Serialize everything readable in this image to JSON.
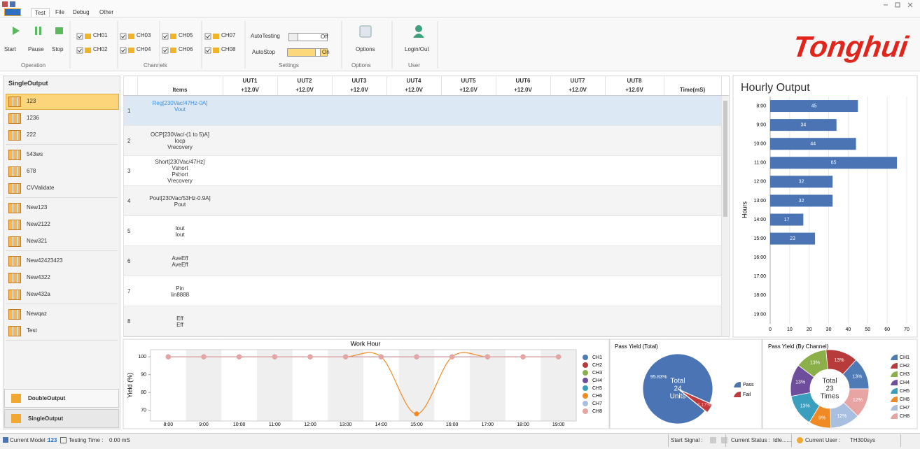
{
  "tabs": [
    "Test",
    "File",
    "Debug",
    "Other"
  ],
  "ribbon": {
    "operation": {
      "buttons": [
        "Start",
        "Pause",
        "Stop"
      ],
      "label": "Operation"
    },
    "channels": {
      "items": [
        "CH01",
        "CH02",
        "CH03",
        "CH04",
        "CH05",
        "CH06",
        "CH07",
        "CH08"
      ],
      "label": "Channels"
    },
    "settings": {
      "auto_testing": "AutoTesting",
      "auto_testing_state": "Off",
      "auto_stop": "AutoStop",
      "auto_stop_state": "On",
      "label": "Settings"
    },
    "options": {
      "button": "Options",
      "label": "Options"
    },
    "user": {
      "button": "Login/Out",
      "label": "User"
    },
    "logo": "Tonghui"
  },
  "sidebar": {
    "title": "SingleOutput",
    "groups": [
      [
        "123",
        "1236",
        "222"
      ],
      [
        "543ws",
        "678",
        "CVValidate"
      ],
      [
        "New123",
        "New2122",
        "New321"
      ],
      [
        "New42423423",
        "New4322",
        "New432a"
      ],
      [
        "Newqaz",
        "Test"
      ]
    ],
    "bottom": [
      "DoubleOutput",
      "SingleOutput"
    ]
  },
  "table": {
    "items_header": "Items",
    "time_header": "Time(mS)",
    "columns": [
      {
        "name": "UUT1",
        "voltage": "+12.0V"
      },
      {
        "name": "UUT2",
        "voltage": "+12.0V"
      },
      {
        "name": "UUT3",
        "voltage": "+12.0V"
      },
      {
        "name": "UUT4",
        "voltage": "+12.0V"
      },
      {
        "name": "UUT5",
        "voltage": "+12.0V"
      },
      {
        "name": "UUT6",
        "voltage": "+12.0V"
      },
      {
        "name": "UUT7",
        "voltage": "+12.0V"
      },
      {
        "name": "UUT8",
        "voltage": "+12.0V"
      }
    ],
    "rows": [
      {
        "no": "1",
        "lines": [
          "Reg[230Vac/47Hz-0A]",
          "Vout"
        ]
      },
      {
        "no": "2",
        "lines": [
          "OCP[230Vac/-(1 to 5)A]",
          "Iocp",
          "Vrecovery"
        ]
      },
      {
        "no": "3",
        "lines": [
          "Short[230Vac/47Hz]",
          "Vshort",
          "Pshort",
          "Vrecovery"
        ]
      },
      {
        "no": "4",
        "lines": [
          "Pout[230Vac/53Hz-0.9A]",
          "Pout"
        ]
      },
      {
        "no": "5",
        "lines": [
          "Iout",
          "Iout"
        ]
      },
      {
        "no": "6",
        "lines": [
          "AveEff",
          "AveEff"
        ]
      },
      {
        "no": "7",
        "lines": [
          "Pin",
          "Iin8888"
        ]
      },
      {
        "no": "8",
        "lines": [
          "Eff",
          "Eff"
        ]
      }
    ]
  },
  "chart_data": [
    {
      "type": "bar",
      "title": "Hourly Output",
      "y_label": "Hours",
      "categories": [
        "8:00",
        "9:00",
        "10:00",
        "11:00",
        "12:00",
        "13:00",
        "14:00",
        "15:00",
        "16:00",
        "17:00",
        "18:00",
        "19:00"
      ],
      "values": [
        45,
        34,
        44,
        65,
        32,
        32,
        17,
        23,
        null,
        null,
        null,
        null
      ],
      "color": "#4a74b3",
      "xlim": [
        0,
        70
      ],
      "xticks": [
        0,
        10,
        20,
        30,
        40,
        50,
        60,
        70
      ],
      "grid": true
    },
    {
      "type": "line",
      "title": "Work Hour",
      "y_label": "Yield (%)",
      "categories": [
        "8:00",
        "9:00",
        "10:00",
        "11:00",
        "12:00",
        "13:00",
        "14:00",
        "15:00",
        "16:00",
        "17:00",
        "18:00",
        "19:00"
      ],
      "series": [
        {
          "name": "CH1",
          "color": "#4e7ab5",
          "values": [
            100,
            100,
            100,
            100,
            100,
            100,
            100,
            100,
            100,
            100,
            100,
            100
          ]
        },
        {
          "name": "CH2",
          "color": "#b83b3b",
          "values": [
            100,
            100,
            100,
            100,
            100,
            100,
            100,
            100,
            100,
            100,
            100,
            100
          ]
        },
        {
          "name": "CH3",
          "color": "#8bb04a",
          "values": [
            100,
            100,
            100,
            100,
            100,
            100,
            100,
            100,
            100,
            100,
            100,
            100
          ]
        },
        {
          "name": "CH4",
          "color": "#6e4e9c",
          "values": [
            100,
            100,
            100,
            100,
            100,
            100,
            100,
            100,
            100,
            100,
            100,
            100
          ]
        },
        {
          "name": "CH5",
          "color": "#3a9fbf",
          "values": [
            100,
            100,
            100,
            100,
            100,
            100,
            100,
            100,
            100,
            100,
            100,
            100
          ]
        },
        {
          "name": "CH6",
          "color": "#f08a24",
          "values": [
            100,
            100,
            100,
            100,
            100,
            100,
            100,
            68,
            100,
            100,
            100,
            100
          ]
        },
        {
          "name": "CH7",
          "color": "#a9bfe0",
          "values": [
            100,
            100,
            100,
            100,
            100,
            100,
            100,
            100,
            100,
            100,
            100,
            100
          ]
        },
        {
          "name": "CH8",
          "color": "#e8a3a3",
          "values": [
            100,
            100,
            100,
            100,
            100,
            100,
            100,
            100,
            100,
            100,
            100,
            100
          ]
        }
      ],
      "ylim": [
        64,
        104
      ],
      "yticks": [
        70,
        80,
        90,
        100
      ],
      "legend": "right"
    },
    {
      "type": "pie",
      "title": "Pass Yield (Total)",
      "categories": [
        "Pass",
        "Fail"
      ],
      "values": [
        95.83,
        4.17
      ],
      "value_labels": [
        "95.83%",
        "4.17%"
      ],
      "colors": [
        "#4a74b3",
        "#c0393b"
      ],
      "center_text": [
        "Total",
        "24",
        "Units"
      ],
      "legend": "right"
    },
    {
      "type": "donut",
      "title": "Pass Yield (By Channel)",
      "categories": [
        "CH1",
        "CH2",
        "CH3",
        "CH4",
        "CH5",
        "CH6",
        "CH7",
        "CH8"
      ],
      "values": [
        13,
        13,
        13,
        13,
        13,
        9,
        12,
        12
      ],
      "value_labels": [
        "13%",
        "13%",
        "13%",
        "13%",
        "13%",
        "9%",
        "12%",
        "12%"
      ],
      "colors": [
        "#4e7ab5",
        "#b83b3b",
        "#8bb04a",
        "#6e4e9c",
        "#3a9fbf",
        "#f08a24",
        "#a9bfe0",
        "#e8a3a3"
      ],
      "center_text": [
        "Total",
        "23",
        "Times"
      ],
      "legend": "right"
    }
  ],
  "status_bar": {
    "model_label": "Current Model :",
    "model": "123",
    "time_label": "Testing Time :",
    "time": "0.00 mS",
    "signal_label": "Start Signal :",
    "status_label": "Current Status :",
    "status": "Idle......",
    "user_label": "Current User :",
    "user": "TH300sys"
  }
}
